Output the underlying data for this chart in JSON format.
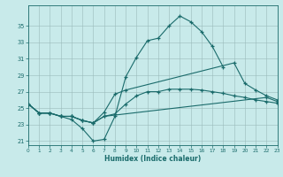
{
  "xlabel": "Humidex (Indice chaleur)",
  "background_color": "#c8eaea",
  "grid_color": "#9ababa",
  "line_color": "#1a6b6b",
  "xlim": [
    0,
    23
  ],
  "ylim": [
    20.5,
    37.5
  ],
  "xticks": [
    0,
    1,
    2,
    3,
    4,
    5,
    6,
    7,
    8,
    9,
    10,
    11,
    12,
    13,
    14,
    15,
    16,
    17,
    18,
    19,
    20,
    21,
    22,
    23
  ],
  "yticks": [
    21,
    23,
    25,
    27,
    29,
    31,
    33,
    35
  ],
  "line1_x": [
    0,
    1,
    2,
    3,
    4,
    5,
    6,
    7,
    8,
    9,
    10,
    11,
    12,
    13,
    14,
    15,
    16,
    17,
    18
  ],
  "line1_y": [
    25.5,
    24.4,
    24.4,
    24.0,
    23.6,
    22.5,
    21.0,
    21.2,
    24.0,
    28.8,
    31.2,
    33.2,
    33.5,
    35.0,
    36.2,
    35.5,
    34.3,
    32.5,
    30.0
  ],
  "line2_x": [
    0,
    1,
    2,
    3,
    4,
    5,
    6,
    7,
    8,
    9,
    19,
    20,
    21,
    22,
    23
  ],
  "line2_y": [
    25.5,
    24.4,
    24.4,
    24.0,
    24.0,
    23.5,
    23.2,
    24.5,
    26.7,
    27.2,
    30.5,
    28.0,
    27.2,
    26.5,
    26.0
  ],
  "line3_x": [
    0,
    1,
    2,
    3,
    4,
    5,
    6,
    7,
    22,
    23
  ],
  "line3_y": [
    25.5,
    24.4,
    24.4,
    24.0,
    24.0,
    23.5,
    23.2,
    24.0,
    26.3,
    25.8
  ],
  "line4_x": [
    0,
    1,
    2,
    3,
    4,
    5,
    6,
    7,
    8,
    9,
    10,
    11,
    12,
    13,
    14,
    15,
    16,
    17,
    18,
    19,
    20,
    21,
    22,
    23
  ],
  "line4_y": [
    25.5,
    24.4,
    24.4,
    24.0,
    24.0,
    23.5,
    23.2,
    24.0,
    24.3,
    25.5,
    26.5,
    27.0,
    27.0,
    27.3,
    27.3,
    27.3,
    27.2,
    27.0,
    26.8,
    26.5,
    26.3,
    26.0,
    25.8,
    25.6
  ]
}
